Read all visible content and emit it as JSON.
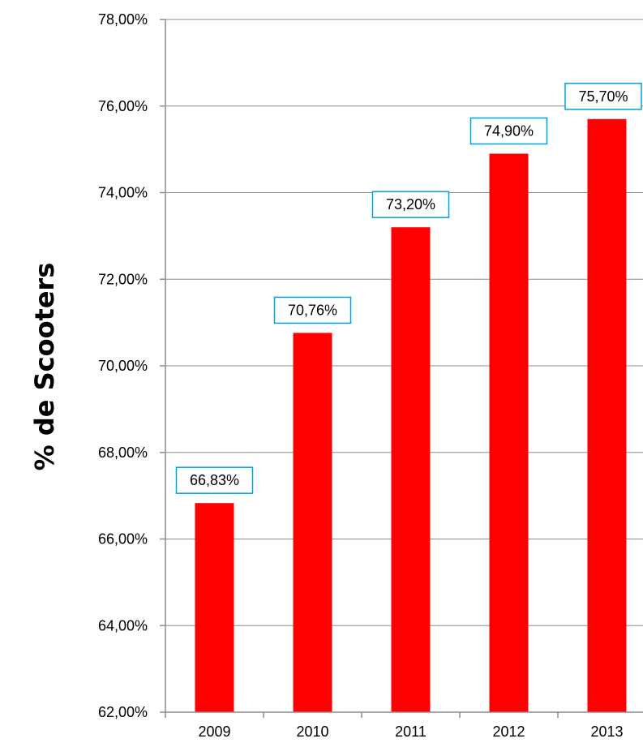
{
  "chart_data": {
    "type": "bar",
    "categories": [
      "2009",
      "2010",
      "2011",
      "2012",
      "2013"
    ],
    "values": [
      66.83,
      70.76,
      73.2,
      74.9,
      75.7
    ],
    "data_labels": [
      "66,83%",
      "70,76%",
      "73,20%",
      "74,90%",
      "75,70%"
    ],
    "title": "",
    "xlabel": "",
    "ylabel": "% de Scooters",
    "ylim": [
      62,
      78
    ],
    "yticks": [
      62,
      64,
      66,
      68,
      70,
      72,
      74,
      76,
      78
    ],
    "ytick_labels": [
      "62,00%",
      "64,00%",
      "66,00%",
      "68,00%",
      "70,00%",
      "72,00%",
      "74,00%",
      "76,00%",
      "78,00%"
    ],
    "grid": true,
    "legend": "none",
    "colors": {
      "bar": "#ff0000",
      "label_border": "#00a0e0",
      "grid": "#8c8c8c"
    }
  }
}
